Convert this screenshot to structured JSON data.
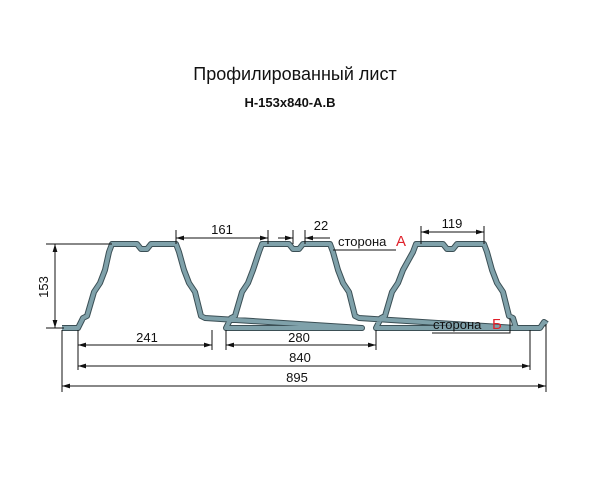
{
  "header": {
    "title": "Профилированный лист",
    "subtitle": "Н-153х840-А.В"
  },
  "dimensions": {
    "top_flat_gap": "161",
    "small_step": "22",
    "top_flat": "119",
    "height": "153",
    "first_bottom": "241",
    "pitch": "280",
    "working_width": "840",
    "total_width": "895"
  },
  "sides": {
    "a_text": "сторона",
    "a_letter": "А",
    "b_text": "сторона",
    "b_letter": "Б"
  }
}
